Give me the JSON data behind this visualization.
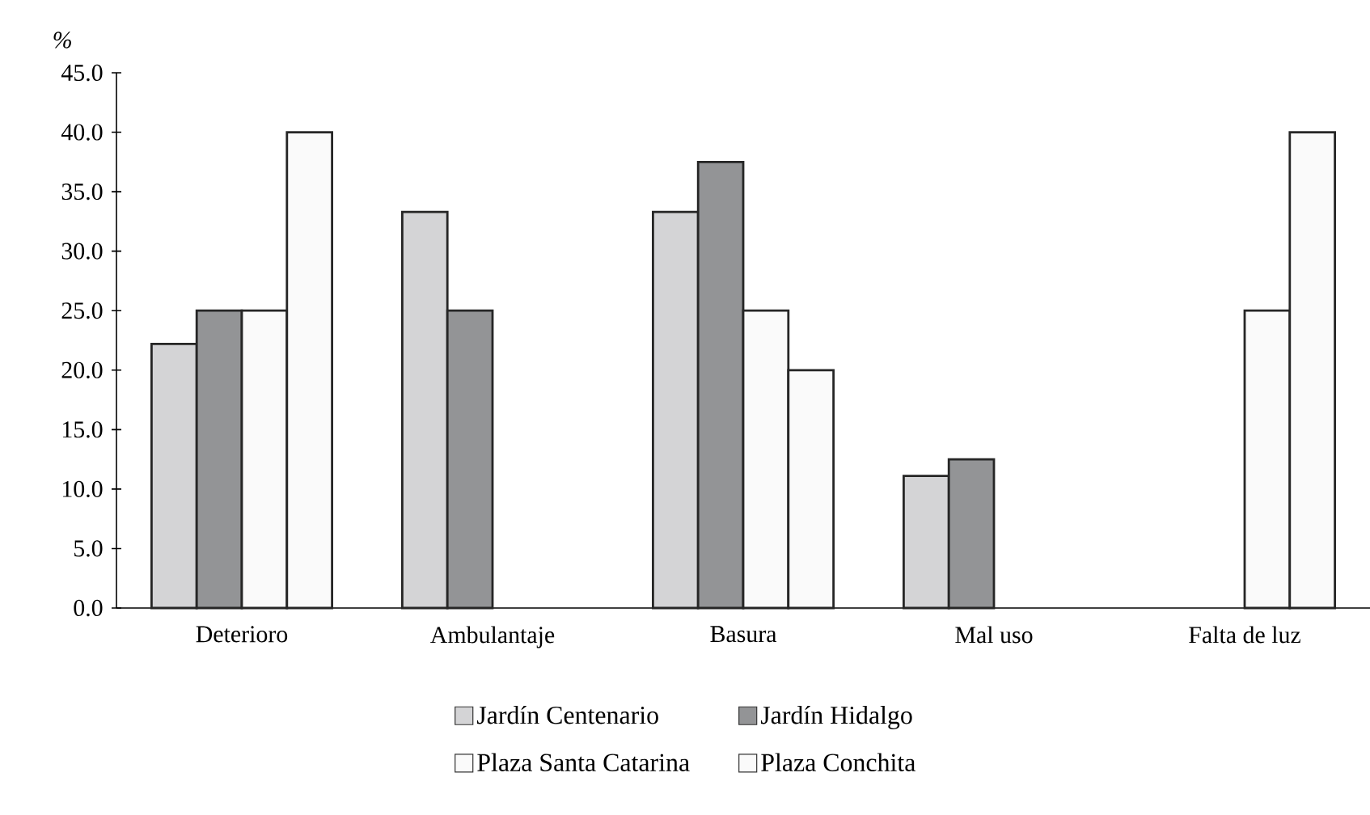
{
  "chart_data": {
    "type": "bar",
    "ylabel": "%",
    "categories": [
      "Deterioro",
      "Ambulantaje",
      "Basura",
      "Mal uso",
      "Falta de luz"
    ],
    "series": [
      {
        "name": "Jardín Centenario",
        "color": "#d4d4d6",
        "values": [
          22.2,
          33.3,
          33.3,
          11.1,
          null
        ]
      },
      {
        "name": "Jardín Hidalgo",
        "color": "#939496",
        "values": [
          25.0,
          25.0,
          37.5,
          12.5,
          null
        ]
      },
      {
        "name": "Plaza Santa Catarina",
        "color": "#fafafa",
        "values": [
          25.0,
          null,
          25.0,
          null,
          25.0
        ]
      },
      {
        "name": "Plaza Conchita",
        "color": "#fafafa",
        "values": [
          40.0,
          null,
          20.0,
          null,
          40.0
        ]
      }
    ],
    "ylim": [
      0,
      45
    ],
    "yticks": [
      {
        "value": 0,
        "label": "0.0"
      },
      {
        "value": 5,
        "label": "5.0"
      },
      {
        "value": 10,
        "label": "10.0"
      },
      {
        "value": 15,
        "label": "15.0"
      },
      {
        "value": 20,
        "label": "20.0"
      },
      {
        "value": 25,
        "label": "25.0"
      },
      {
        "value": 30,
        "label": "30.0"
      },
      {
        "value": 35,
        "label": "35.0"
      },
      {
        "value": 40,
        "label": "40.0"
      },
      {
        "value": 45,
        "label": "45.0"
      }
    ],
    "grid": false,
    "legend": "bottom"
  }
}
